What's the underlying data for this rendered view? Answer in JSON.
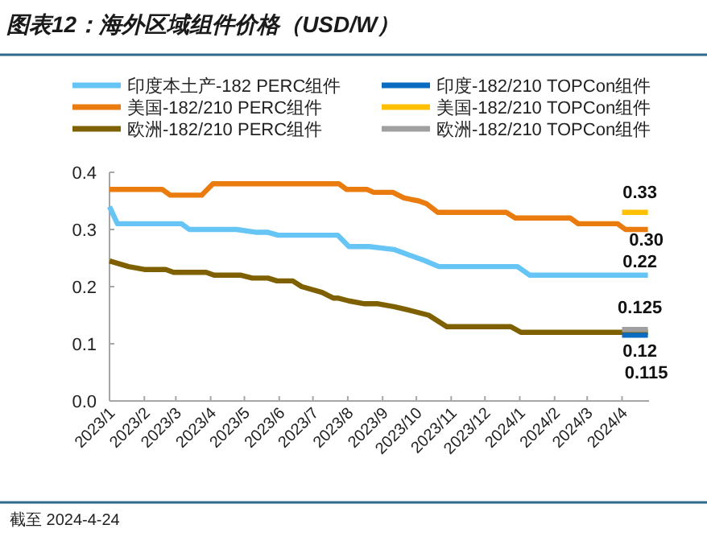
{
  "chart_data": {
    "type": "line",
    "title": "图表12：海外区域组件价格（USD/W）",
    "annotations": [
      "截至 2024-4-24"
    ],
    "xlim": [
      "2023-01-01",
      "2024-04-25"
    ],
    "xticks": [
      {
        "value": "2023-01-01",
        "label": "2023/1"
      },
      {
        "value": "2023-02-01",
        "label": "2023/2"
      },
      {
        "value": "2023-03-01",
        "label": "2023/3"
      },
      {
        "value": "2023-04-01",
        "label": "2023/4"
      },
      {
        "value": "2023-05-01",
        "label": "2023/5"
      },
      {
        "value": "2023-06-01",
        "label": "2023/6"
      },
      {
        "value": "2023-07-01",
        "label": "2023/7"
      },
      {
        "value": "2023-08-01",
        "label": "2023/8"
      },
      {
        "value": "2023-09-01",
        "label": "2023/9"
      },
      {
        "value": "2023-10-01",
        "label": "2023/10"
      },
      {
        "value": "2023-11-01",
        "label": "2023/11"
      },
      {
        "value": "2023-12-01",
        "label": "2023/12"
      },
      {
        "value": "2024-01-01",
        "label": "2024/1"
      },
      {
        "value": "2024-02-01",
        "label": "2024/2"
      },
      {
        "value": "2024-03-01",
        "label": "2024/3"
      },
      {
        "value": "2024-04-01",
        "label": "2024/4"
      }
    ],
    "ylim": [
      0,
      0.4
    ],
    "yticks": [
      {
        "value": 0,
        "label": "0.0"
      },
      {
        "value": 0.1,
        "label": "0.1"
      },
      {
        "value": 0.2,
        "label": "0.2"
      },
      {
        "value": 0.3,
        "label": "0.3"
      },
      {
        "value": 0.4,
        "label": "0.4"
      }
    ],
    "legend": "top",
    "line_style": "solid",
    "series": [
      {
        "name": "印度本土产-182 PERC组件",
        "color": "#66c5f5",
        "x": [
          "2023-01-01",
          "2023-01-08",
          "2023-03-06",
          "2023-03-13",
          "2023-04-24",
          "2023-05-12",
          "2023-05-22",
          "2023-05-31",
          "2023-07-23",
          "2023-08-02",
          "2023-08-20",
          "2023-09-11",
          "2023-09-25",
          "2023-10-09",
          "2023-10-21",
          "2023-12-30",
          "2024-01-10",
          "2024-04-24"
        ],
        "values": [
          0.34,
          0.31,
          0.31,
          0.3,
          0.3,
          0.295,
          0.295,
          0.29,
          0.29,
          0.27,
          0.27,
          0.265,
          0.255,
          0.245,
          0.235,
          0.235,
          0.22,
          0.22
        ],
        "value_labels": [
          null,
          null,
          null,
          null,
          null,
          null,
          null,
          null,
          null,
          null,
          null,
          null,
          null,
          null,
          null,
          null,
          null,
          "0.22"
        ]
      },
      {
        "name": "美国-182/210 PERC组件",
        "color": "#ea7b0e",
        "x": [
          "2023-01-01",
          "2023-02-17",
          "2023-02-24",
          "2023-03-24",
          "2023-04-03",
          "2023-07-24",
          "2023-07-31",
          "2023-08-18",
          "2023-08-24",
          "2023-09-10",
          "2023-09-20",
          "2023-10-03",
          "2023-10-10",
          "2023-10-20",
          "2023-12-20",
          "2023-12-28",
          "2024-02-15",
          "2024-02-22",
          "2024-03-28",
          "2024-04-04",
          "2024-04-24"
        ],
        "values": [
          0.37,
          0.37,
          0.36,
          0.36,
          0.38,
          0.38,
          0.37,
          0.37,
          0.365,
          0.365,
          0.355,
          0.35,
          0.345,
          0.33,
          0.33,
          0.32,
          0.32,
          0.31,
          0.31,
          0.3,
          0.3
        ],
        "value_labels": [
          null,
          null,
          null,
          null,
          null,
          null,
          null,
          null,
          null,
          null,
          null,
          null,
          null,
          null,
          null,
          null,
          null,
          null,
          null,
          null,
          "0.30"
        ]
      },
      {
        "name": "欧洲-182/210 PERC组件",
        "color": "#7f6000",
        "x": [
          "2023-01-01",
          "2023-01-18",
          "2023-02-01",
          "2023-02-20",
          "2023-02-27",
          "2023-03-28",
          "2023-04-04",
          "2023-04-28",
          "2023-05-08",
          "2023-05-22",
          "2023-05-30",
          "2023-06-13",
          "2023-06-21",
          "2023-07-09",
          "2023-07-19",
          "2023-07-23",
          "2023-08-02",
          "2023-08-16",
          "2023-08-28",
          "2023-09-11",
          "2023-09-22",
          "2023-10-12",
          "2023-10-28",
          "2023-12-24",
          "2024-01-02",
          "2024-04-24"
        ],
        "values": [
          0.245,
          0.235,
          0.23,
          0.23,
          0.225,
          0.225,
          0.22,
          0.22,
          0.215,
          0.215,
          0.21,
          0.21,
          0.2,
          0.19,
          0.18,
          0.18,
          0.175,
          0.17,
          0.17,
          0.165,
          0.16,
          0.15,
          0.13,
          0.13,
          0.12,
          0.12
        ],
        "value_labels": [
          null,
          null,
          null,
          null,
          null,
          null,
          null,
          null,
          null,
          null,
          null,
          null,
          null,
          null,
          null,
          null,
          null,
          null,
          null,
          null,
          null,
          null,
          null,
          null,
          null,
          "0.12"
        ]
      },
      {
        "name": "印度-182/210 TOPCon组件",
        "color": "#0a6bc1",
        "x": [
          "2024-04-01",
          "2024-04-24"
        ],
        "values": [
          0.115,
          0.115
        ],
        "value_labels": [
          null,
          "0.115"
        ]
      },
      {
        "name": "美国-182/210 TOPCon组件",
        "color": "#ffc000",
        "x": [
          "2024-04-01",
          "2024-04-24"
        ],
        "values": [
          0.33,
          0.33
        ],
        "value_labels": [
          null,
          "0.33"
        ]
      },
      {
        "name": "欧洲-182/210 TOPCon组件",
        "color": "#a0a0a0",
        "x": [
          "2024-04-01",
          "2024-04-24"
        ],
        "values": [
          0.125,
          0.125
        ],
        "value_labels": [
          null,
          "0.125"
        ]
      }
    ]
  }
}
